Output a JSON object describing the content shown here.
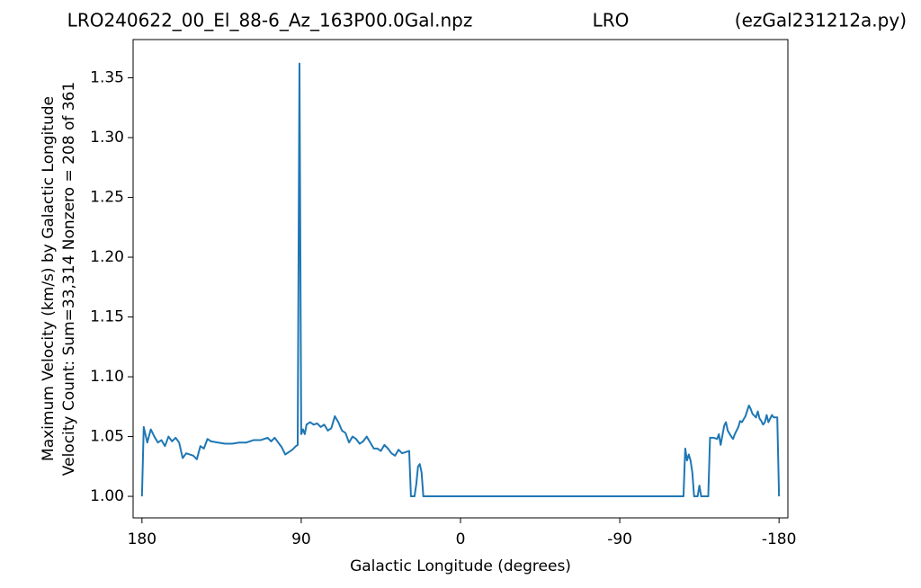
{
  "chart_data": {
    "type": "line",
    "title": "LRO240622_00_El_88-6_Az_163P00.0Gal.npz",
    "title_center": "LRO",
    "title_right": "(ezGal231212a.py)",
    "xlabel": "Galactic Longitude (degrees)",
    "ylabel": [
      "Maximum Velocity (km/s) by Galactic Longitude",
      "Velocity Count: Sum=33,314 Nonzero = 208 of 361"
    ],
    "x": [
      180,
      179,
      177,
      175,
      173,
      171,
      169,
      167,
      165,
      163,
      161,
      159,
      157,
      155,
      151,
      149,
      147,
      145,
      143,
      141,
      137,
      133,
      129,
      125,
      121,
      117,
      113,
      109,
      107,
      105,
      103,
      101,
      99,
      97,
      95,
      93,
      92,
      91,
      90,
      89,
      88,
      87,
      85,
      83,
      81,
      79,
      77,
      75,
      73,
      71,
      69,
      67,
      65,
      63,
      61,
      59,
      57,
      55,
      53,
      51,
      49,
      47,
      45,
      43,
      41,
      39,
      37,
      35,
      33,
      29,
      28,
      26,
      25,
      24,
      23,
      22,
      21,
      -126,
      -127,
      -128,
      -129,
      -130,
      -131,
      -132,
      -134,
      -135,
      -136,
      -140,
      -141,
      -143,
      -145,
      -146,
      -147,
      -149,
      -150,
      -151,
      -153,
      -154,
      -155,
      -157,
      -158,
      -159,
      -161,
      -163,
      -164,
      -165,
      -167,
      -168,
      -169,
      -170,
      -171,
      -172,
      -173,
      -174,
      -175,
      -176,
      -177,
      -179,
      -180
    ],
    "series": [
      {
        "name": "Maximum Velocity",
        "color": "#1f77b4",
        "values": [
          1.0,
          1.058,
          1.045,
          1.056,
          1.05,
          1.045,
          1.047,
          1.042,
          1.05,
          1.046,
          1.049,
          1.045,
          1.032,
          1.036,
          1.034,
          1.031,
          1.042,
          1.04,
          1.048,
          1.046,
          1.045,
          1.044,
          1.044,
          1.045,
          1.045,
          1.047,
          1.047,
          1.049,
          1.046,
          1.049,
          1.045,
          1.041,
          1.035,
          1.037,
          1.039,
          1.042,
          1.043,
          1.362,
          1.052,
          1.056,
          1.052,
          1.06,
          1.062,
          1.06,
          1.061,
          1.058,
          1.06,
          1.055,
          1.057,
          1.067,
          1.062,
          1.055,
          1.053,
          1.045,
          1.05,
          1.048,
          1.044,
          1.046,
          1.05,
          1.045,
          1.04,
          1.04,
          1.038,
          1.043,
          1.04,
          1.036,
          1.034,
          1.039,
          1.036,
          1.038,
          1.0,
          1.0,
          1.01,
          1.025,
          1.027,
          1.02,
          1.0,
          1.0,
          1.04,
          1.03,
          1.035,
          1.03,
          1.02,
          1.0,
          1.0,
          1.009,
          1.0,
          1.0,
          1.049,
          1.049,
          1.048,
          1.052,
          1.043,
          1.059,
          1.062,
          1.055,
          1.05,
          1.048,
          1.052,
          1.058,
          1.063,
          1.062,
          1.067,
          1.076,
          1.073,
          1.069,
          1.066,
          1.071,
          1.065,
          1.063,
          1.06,
          1.062,
          1.068,
          1.062,
          1.065,
          1.068,
          1.066,
          1.066,
          1.0
        ]
      }
    ],
    "xlim": [
      185,
      -185
    ],
    "xticks": [
      180,
      90,
      0,
      -90,
      -180
    ],
    "ylim": [
      0.982,
      1.382
    ],
    "yticks": [
      {
        "value": 1,
        "label": "1.00"
      },
      {
        "value": 1.05,
        "label": "1.05"
      },
      {
        "value": 1.1,
        "label": "1.10"
      },
      1.15,
      {
        "value": 1.2,
        "label": "1.20"
      },
      1.25,
      {
        "value": 1.3,
        "label": "1.30"
      },
      1.35
    ],
    "grid": false
  }
}
